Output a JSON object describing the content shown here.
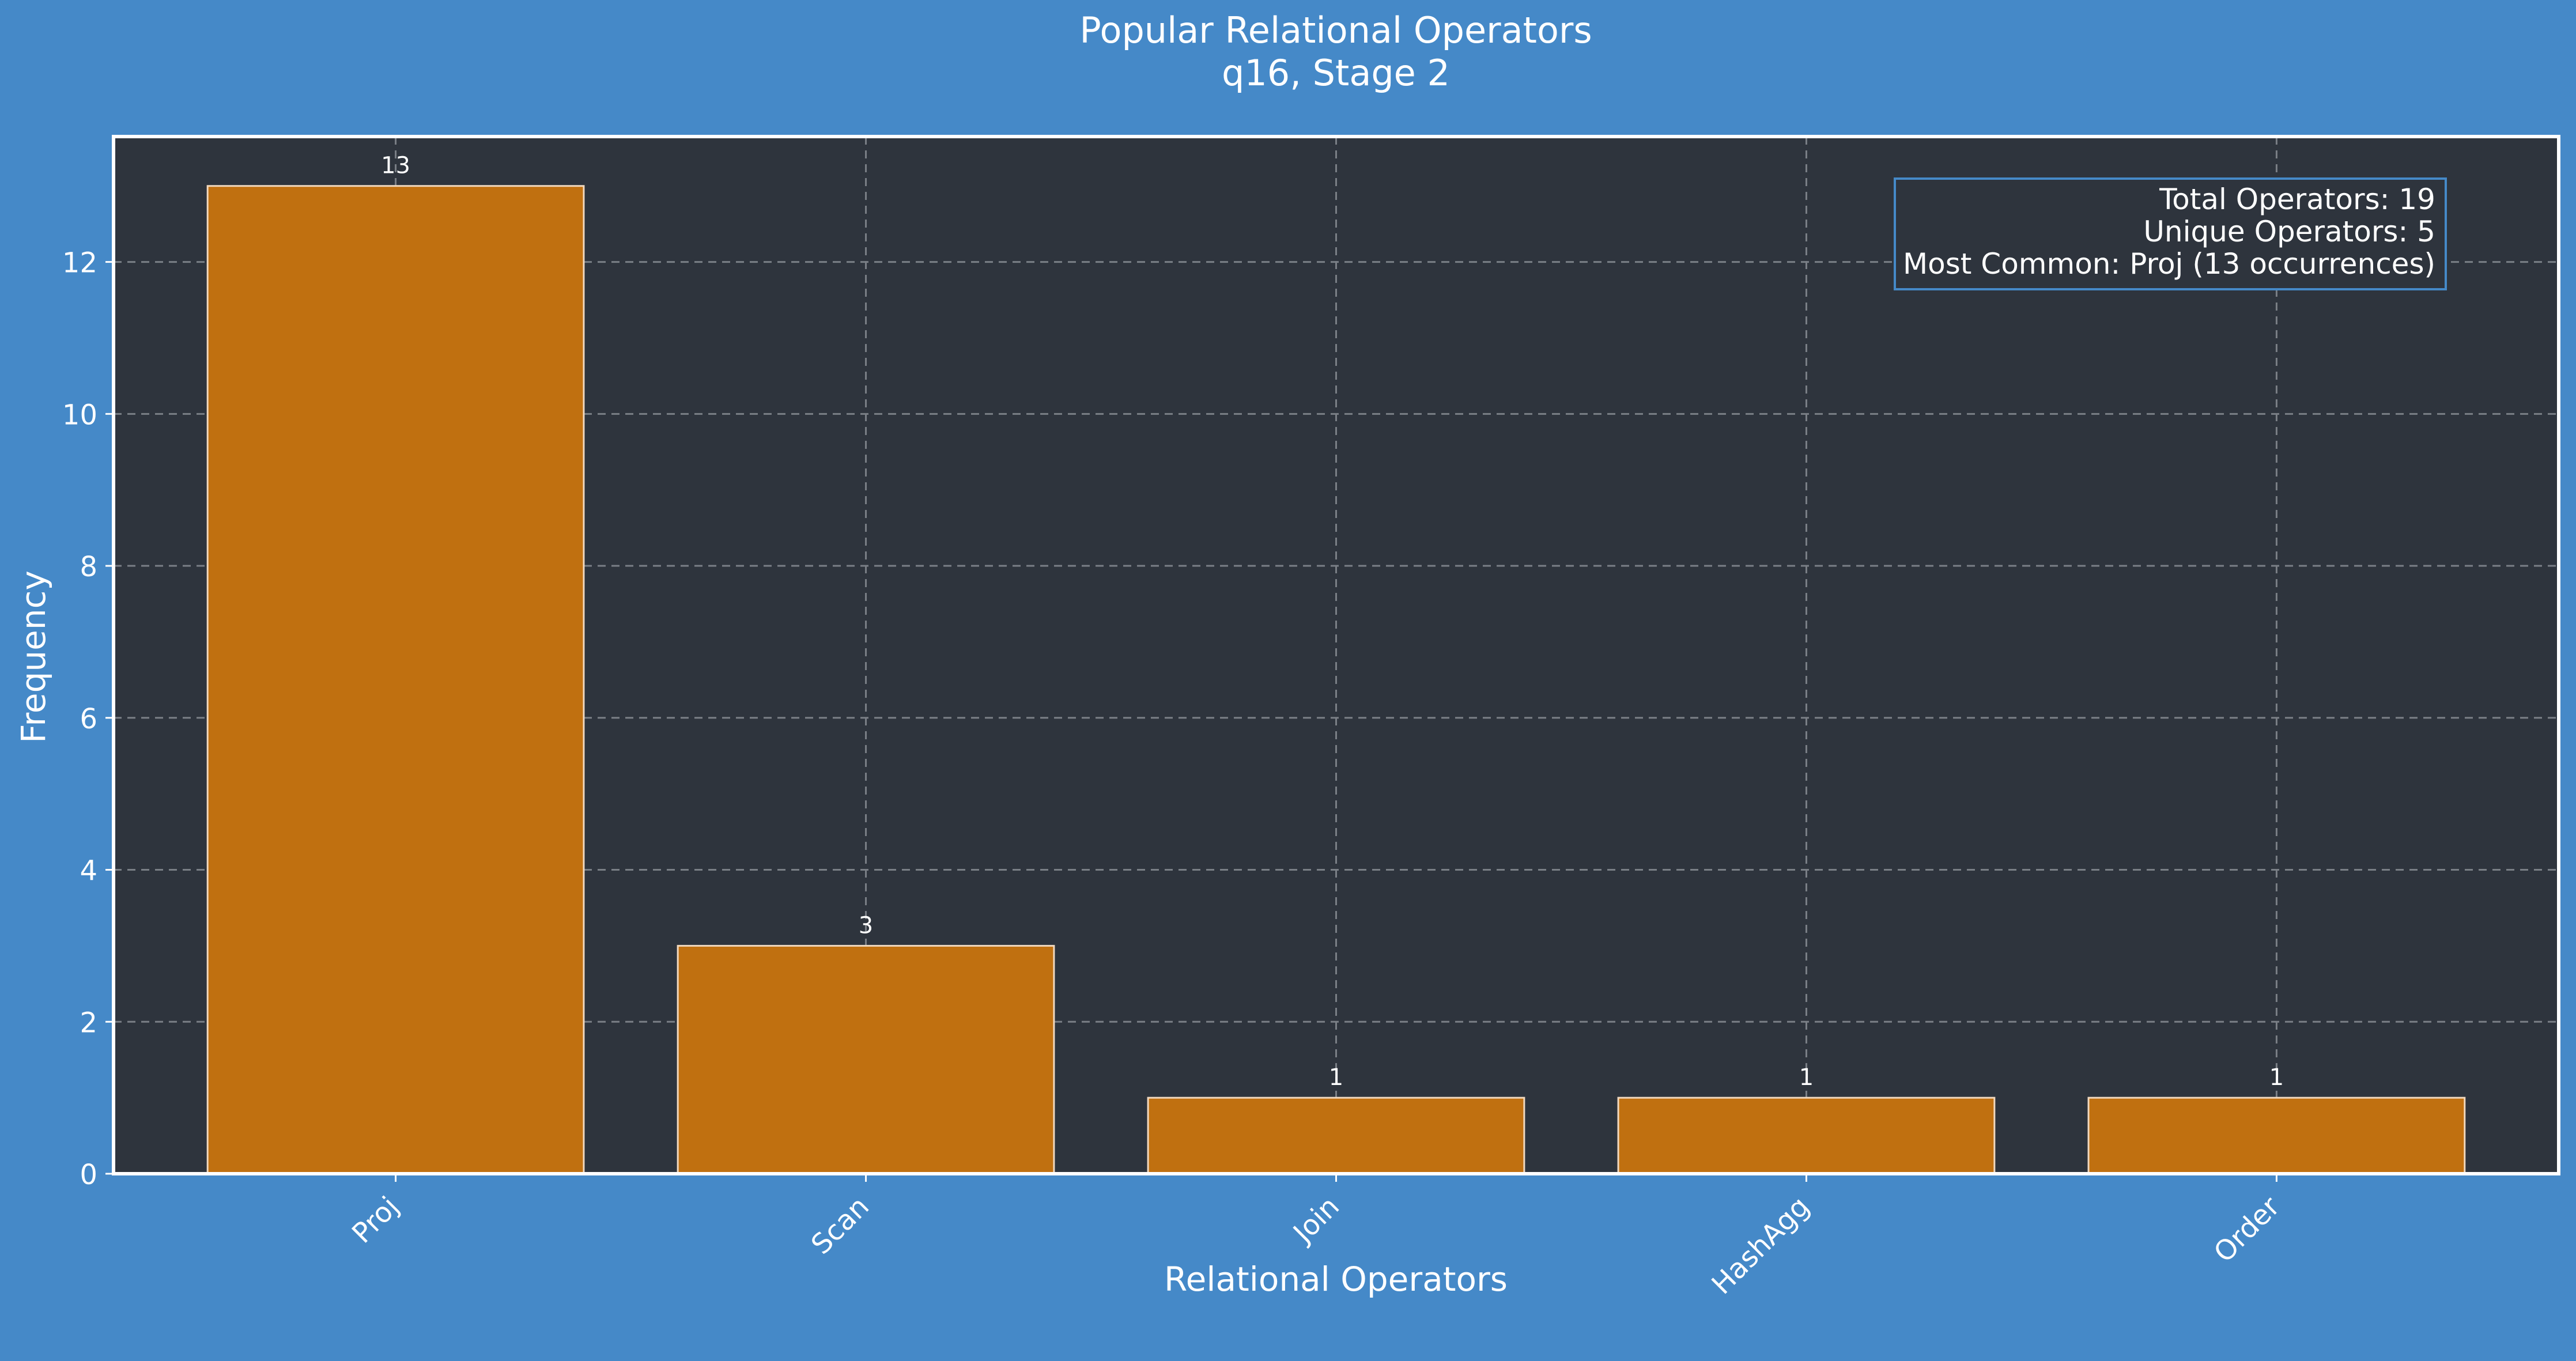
{
  "chart_data": {
    "type": "bar",
    "title": "Popular Relational Operators",
    "subtitle": "q16, Stage 2",
    "xlabel": "Relational Operators",
    "ylabel": "Frequency",
    "categories": [
      "Proj",
      "Scan",
      "Join",
      "HashAgg",
      "Order"
    ],
    "values": [
      13,
      3,
      1,
      1,
      1
    ],
    "data_labels": [
      "13",
      "3",
      "1",
      "1",
      "1"
    ],
    "ylim": [
      0,
      13.65
    ],
    "yticks": [
      0,
      2,
      4,
      6,
      8,
      10,
      12
    ],
    "grid": true,
    "annotation": [
      "Total Operators: 19",
      "Unique Operators: 5",
      "Most Common: Proj (13 occurrences)"
    ]
  },
  "colors": {
    "background": "#4589c8",
    "plot_background": "#2e343d",
    "bar_fill": "#c07010",
    "bar_edge": "#f2d9bf",
    "text": "#ffffff",
    "grid": "#7a7f86",
    "annotation_border": "#4589c8"
  }
}
